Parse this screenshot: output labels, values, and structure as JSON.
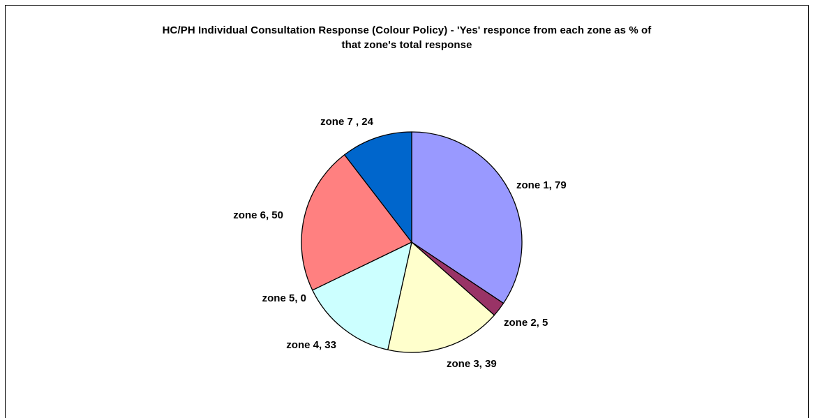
{
  "chart_data": {
    "type": "pie",
    "title_line1": "HC/PH Individual Consultation Response (Colour Policy) - 'Yes' responce from each zone as % of",
    "title_line2": "that zone's total response",
    "start_angle_deg": 0,
    "direction": "clockwise",
    "legend": "none",
    "slices": [
      {
        "category": "zone 1",
        "value": 79,
        "label": "zone 1, 79",
        "color": "#9999FF"
      },
      {
        "category": "zone 2",
        "value": 5,
        "label": "zone 2, 5",
        "color": "#993366"
      },
      {
        "category": "zone 3",
        "value": 39,
        "label": "zone 3, 39",
        "color": "#FFFFCC"
      },
      {
        "category": "zone 4",
        "value": 33,
        "label": "zone 4, 33",
        "color": "#CCFFFF"
      },
      {
        "category": "zone 5",
        "value": 0,
        "label": "zone 5, 0",
        "color": "#660066"
      },
      {
        "category": "zone 6",
        "value": 50,
        "label": "zone 6, 50",
        "color": "#FF8080"
      },
      {
        "category": "zone 7",
        "value": 24,
        "label": "zone 7 , 24",
        "color": "#0066CC"
      }
    ]
  }
}
